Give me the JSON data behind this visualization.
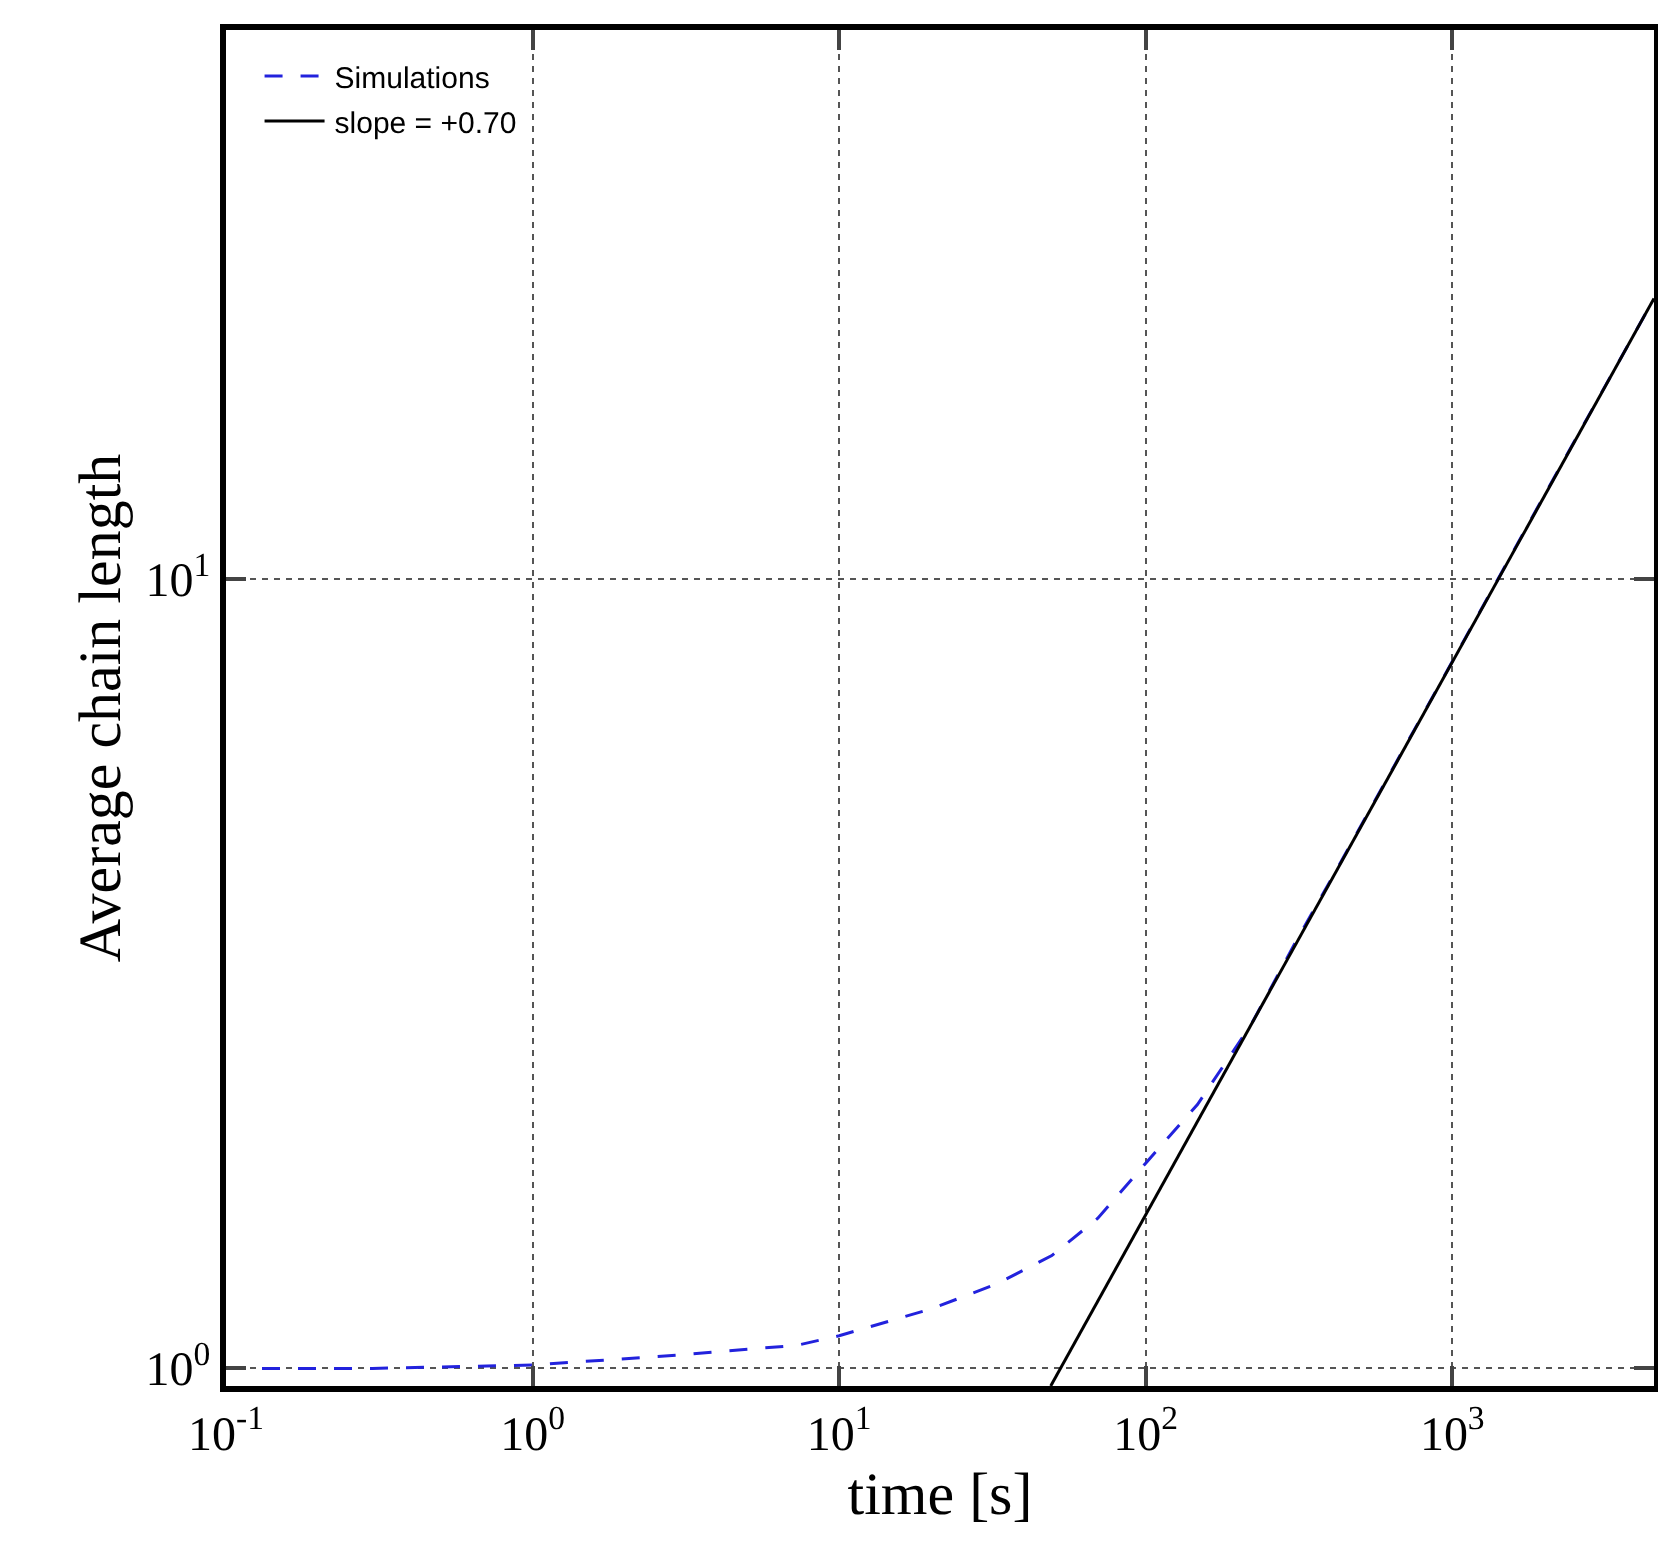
{
  "chart_data": {
    "type": "line",
    "xlabel": "time [s]",
    "ylabel": "Average chain length",
    "log": "xy",
    "grid": true,
    "legend": "top left",
    "marker": "none",
    "xlim": [
      0.1,
      4550
    ],
    "ylim": [
      0.95,
      49.7
    ],
    "xticks": [
      {
        "value": 0.1,
        "label": "10$^{-1}$"
      },
      {
        "value": 1,
        "label": "10$^{0}$"
      },
      {
        "value": 10,
        "label": "10$^{1}$"
      },
      {
        "value": 100,
        "label": "10$^{2}$"
      },
      {
        "value": 1000,
        "label": "10$^{3}$"
      }
    ],
    "yticks": [
      {
        "value": 1,
        "label": "10$^{0}$"
      },
      {
        "value": 10,
        "label": "10$^{1}$"
      }
    ],
    "series": [
      {
        "name": "Simulations",
        "color": "#2222dd",
        "line_style": "dashed",
        "x": [
          0.1,
          0.3,
          1,
          3,
          7.3,
          10,
          20,
          32.7,
          49.4,
          69.8,
          100,
          147.5,
          221,
          312,
          403,
          1000,
          2000,
          4550
        ],
        "values": [
          1.0,
          1.0,
          1.01,
          1.04,
          1.07,
          1.1,
          1.19,
          1.28,
          1.39,
          1.55,
          1.82,
          2.16,
          2.73,
          3.5,
          4.17,
          7.87,
          12.8,
          22.7
        ]
      },
      {
        "name": "slope = +0.70",
        "color": "#000000",
        "line_style": "solid",
        "x": [
          49,
          4550
        ],
        "values": [
          0.95,
          22.7
        ]
      }
    ]
  }
}
